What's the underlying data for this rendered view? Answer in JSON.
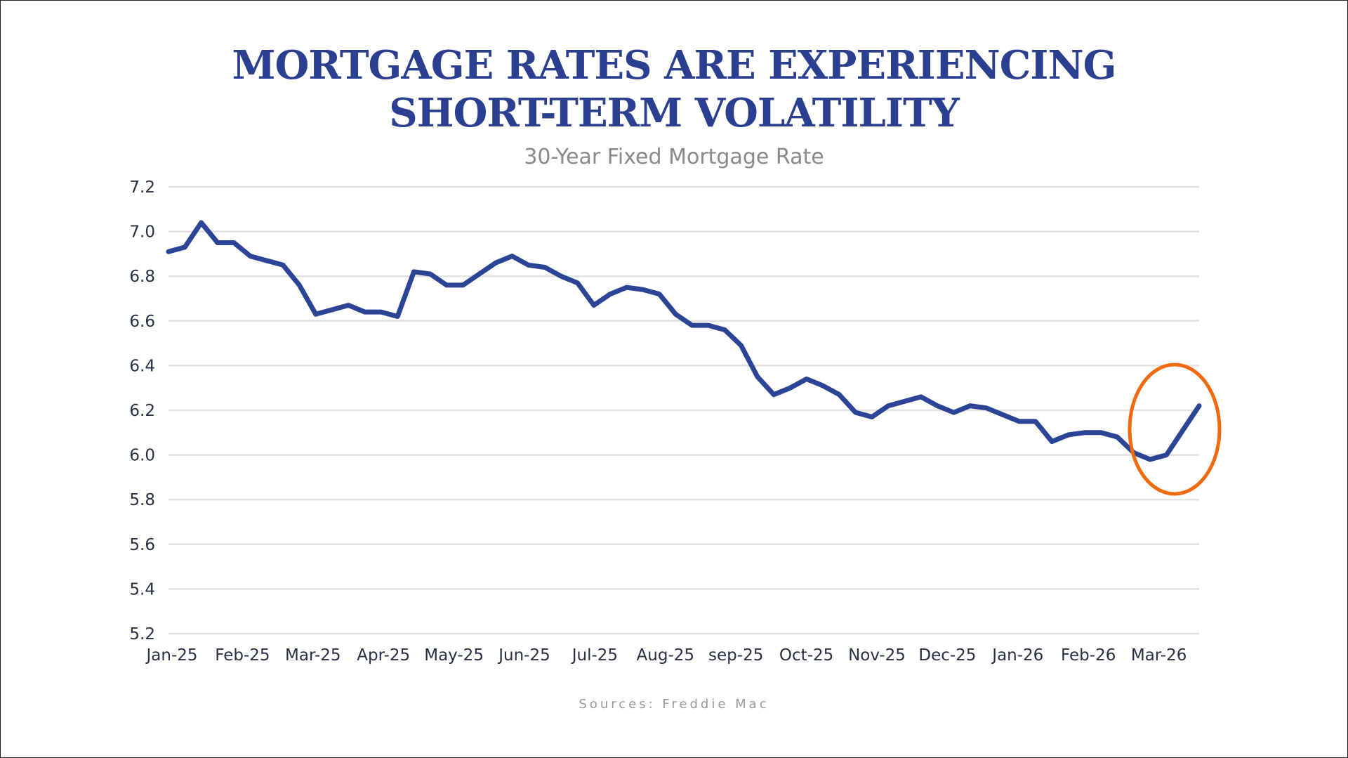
{
  "chart_data": {
    "type": "line",
    "title_lines": [
      "MORTGAGE RATES ARE EXPERIENCING",
      "SHORT-TERM VOLATILITY"
    ],
    "subtitle": "30-Year Fixed Mortgage Rate",
    "source": "Sources: Freddie Mac",
    "xlabel": "",
    "ylabel": "",
    "ylim": [
      5.2,
      7.2
    ],
    "yticks": [
      "7.2",
      "7.0",
      "6.8",
      "6.6",
      "6.4",
      "6.2",
      "6.0",
      "5.8",
      "5.6",
      "5.4",
      "5.2"
    ],
    "xtick_labels": [
      "Jan-25",
      "Feb-25",
      "Mar-25",
      "Apr-25",
      "May-25",
      "Jun-25",
      "Jul-25",
      "Aug-25",
      "sep-25",
      "Oct-25",
      "Nov-25",
      "Dec-25",
      "Jan-26",
      "Feb-26",
      "Mar-26"
    ],
    "grid": "horizontal",
    "series": [
      {
        "color": "#2b4496",
        "values": [
          6.91,
          6.93,
          7.04,
          6.95,
          6.95,
          6.89,
          6.87,
          6.85,
          6.76,
          6.63,
          6.65,
          6.67,
          6.64,
          6.64,
          6.62,
          6.82,
          6.81,
          6.76,
          6.76,
          6.81,
          6.86,
          6.89,
          6.85,
          6.84,
          6.8,
          6.77,
          6.67,
          6.72,
          6.75,
          6.74,
          6.72,
          6.63,
          6.58,
          6.58,
          6.56,
          6.49,
          6.35,
          6.27,
          6.3,
          6.34,
          6.31,
          6.27,
          6.19,
          6.17,
          6.22,
          6.24,
          6.26,
          6.22,
          6.19,
          6.22,
          6.21,
          6.18,
          6.15,
          6.15,
          6.06,
          6.09,
          6.1,
          6.1,
          6.08,
          6.01,
          5.98,
          6.0,
          6.11,
          6.22
        ]
      }
    ],
    "annotation": {
      "type": "ellipse-highlight",
      "color": "#f26a10",
      "target": "latest rise, Mar-26"
    }
  }
}
